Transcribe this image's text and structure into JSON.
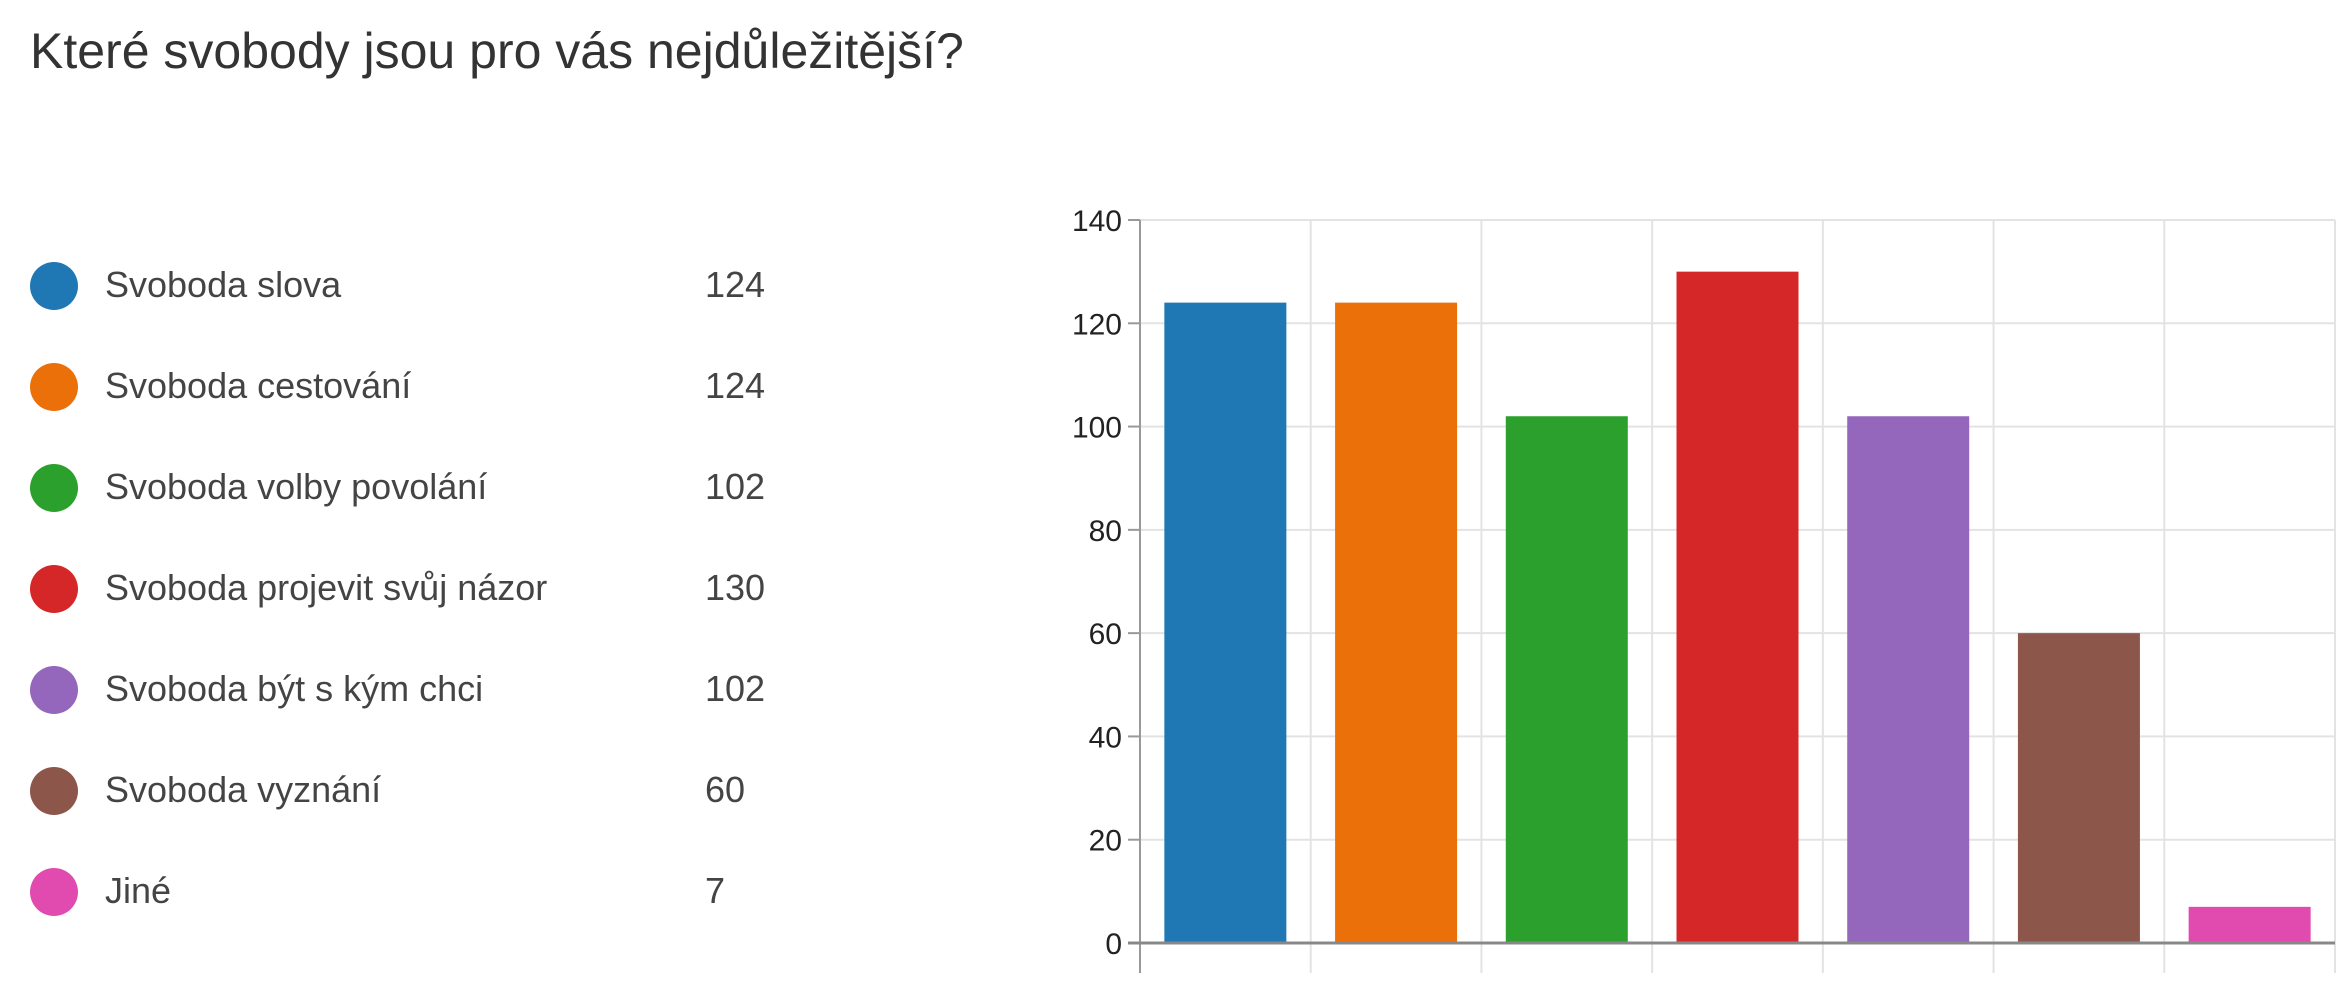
{
  "title": "Které svobody jsou pro vás nejdůležitější?",
  "legend": {
    "items": [
      {
        "label": "Svoboda slova",
        "count": "124",
        "color": "#1f77b4"
      },
      {
        "label": "Svoboda cestování",
        "count": "124",
        "color": "#ec700a"
      },
      {
        "label": "Svoboda volby povolání",
        "count": "102",
        "color": "#2ca02c"
      },
      {
        "label": "Svoboda projevit svůj názor",
        "count": "130",
        "color": "#d62728"
      },
      {
        "label": "Svoboda být s kým chci",
        "count": "102",
        "color": "#9467bd"
      },
      {
        "label": "Svoboda vyznání",
        "count": "60",
        "color": "#8c564b"
      },
      {
        "label": "Jiné",
        "count": "7",
        "color": "#e14bb0"
      }
    ]
  },
  "chart_data": {
    "type": "bar",
    "title": "Které svobody jsou pro vás nejdůležitější?",
    "categories": [
      "Svoboda slova",
      "Svoboda cestování",
      "Svoboda volby povolání",
      "Svoboda projevit svůj názor",
      "Svoboda být s kým chci",
      "Svoboda vyznání",
      "Jiné"
    ],
    "values": [
      124,
      124,
      102,
      130,
      102,
      60,
      7
    ],
    "colors": [
      "#1f77b4",
      "#ec700a",
      "#2ca02c",
      "#d62728",
      "#9467bd",
      "#8c564b",
      "#e14bb0"
    ],
    "ylim": [
      0,
      140
    ],
    "yticks": [
      0,
      20,
      40,
      60,
      80,
      100,
      120,
      140
    ],
    "xlabel": "",
    "ylabel": "",
    "grid": true,
    "legend_position": "left"
  }
}
